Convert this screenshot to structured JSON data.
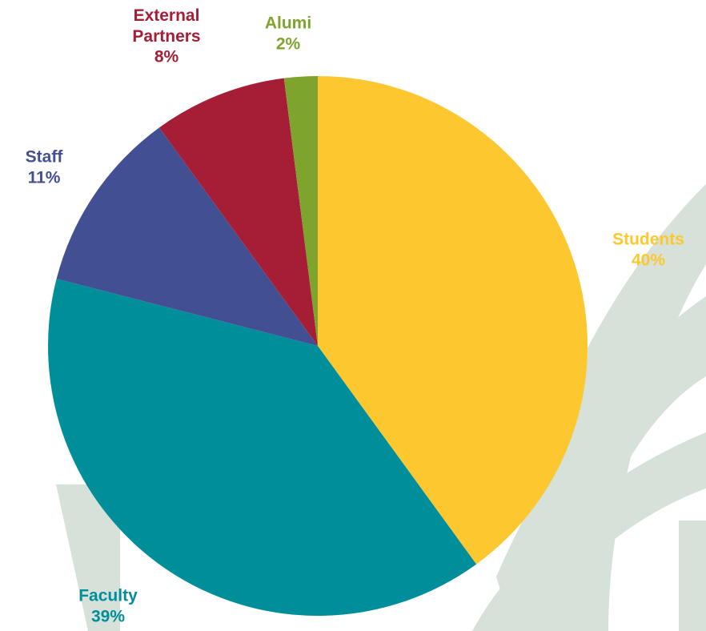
{
  "chart_data": {
    "type": "pie",
    "categories": [
      "Students",
      "Faculty",
      "Staff",
      "External Partners",
      "Alumi"
    ],
    "values": [
      40,
      39,
      11,
      8,
      2
    ],
    "value_labels": [
      "40%",
      "39%",
      "11%",
      "8%",
      "2%"
    ],
    "colors": [
      "#fdc82f",
      "#008e9b",
      "#434f93",
      "#a51e36",
      "#7ea42d"
    ]
  }
}
